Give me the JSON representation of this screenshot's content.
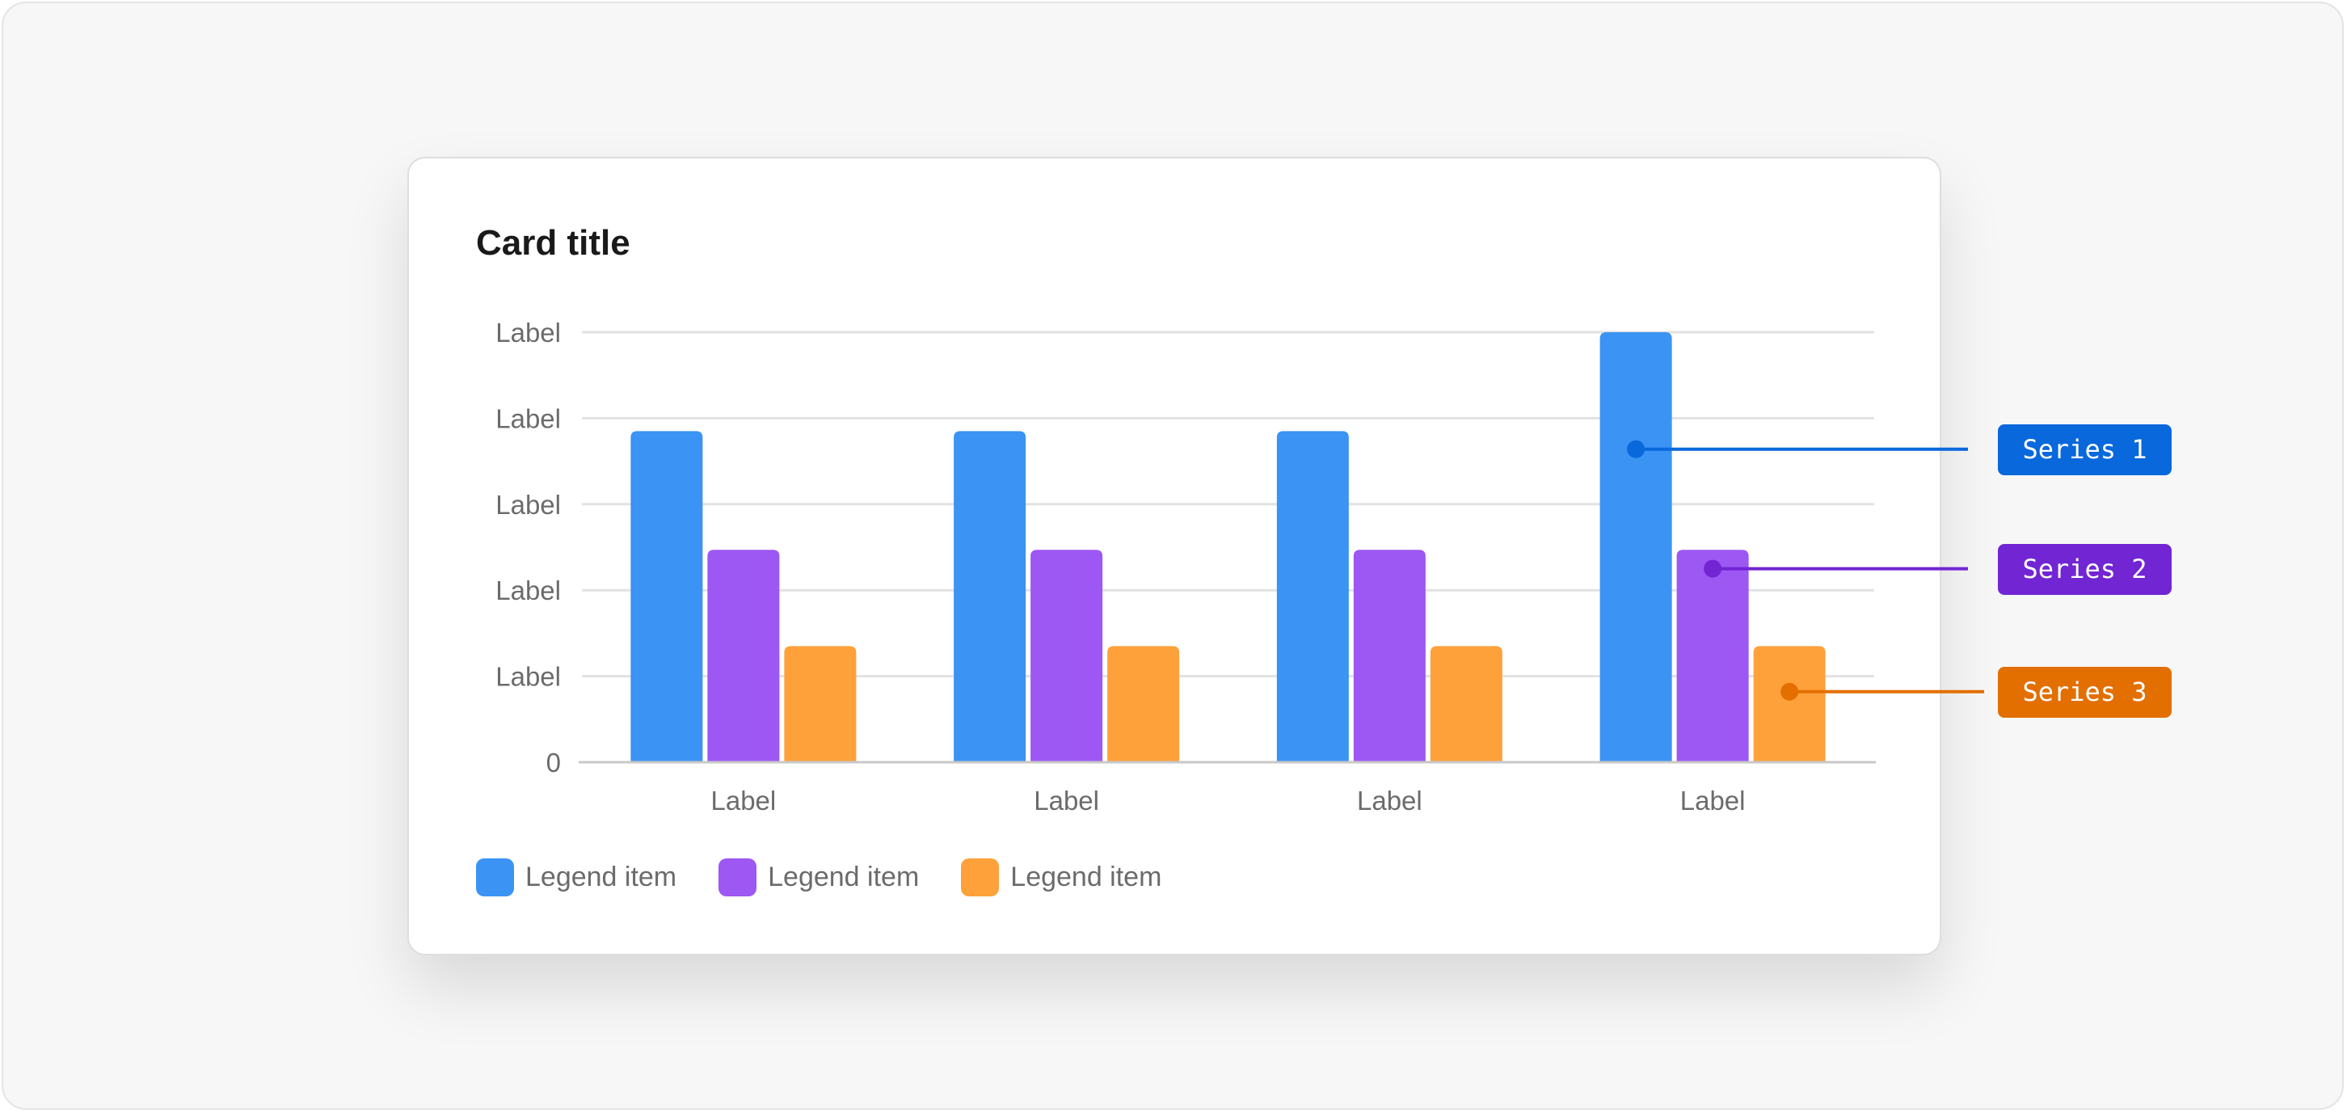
{
  "card": {
    "title": "Card title"
  },
  "chart_data": {
    "type": "bar",
    "title": "Card title",
    "categories": [
      "Label",
      "Label",
      "Label",
      "Label"
    ],
    "y_tick_labels": [
      "0",
      "Label",
      "Label",
      "Label",
      "Label",
      "Label"
    ],
    "ylim": [
      0,
      5
    ],
    "grid": true,
    "legend_placement": "bottom-left",
    "series": [
      {
        "name": "Legend item",
        "color": "#3b93f3",
        "values": [
          3.85,
          3.85,
          3.85,
          5.0
        ]
      },
      {
        "name": "Legend item",
        "color": "#9d57f3",
        "values": [
          2.47,
          2.47,
          2.47,
          2.47
        ]
      },
      {
        "name": "Legend item",
        "color": "#ffa13b",
        "values": [
          1.35,
          1.35,
          1.35,
          1.35
        ]
      }
    ]
  },
  "annotations": [
    {
      "label": "Series 1",
      "color": "#0868dc",
      "category_index": 3,
      "series_index": 0,
      "value": 3.64
    },
    {
      "label": "Series 2",
      "color": "#7225d3",
      "category_index": 3,
      "series_index": 1,
      "value": 2.25
    },
    {
      "label": "Series 3",
      "color": "#e36f00",
      "category_index": 3,
      "series_index": 2,
      "value": 0.82
    }
  ]
}
